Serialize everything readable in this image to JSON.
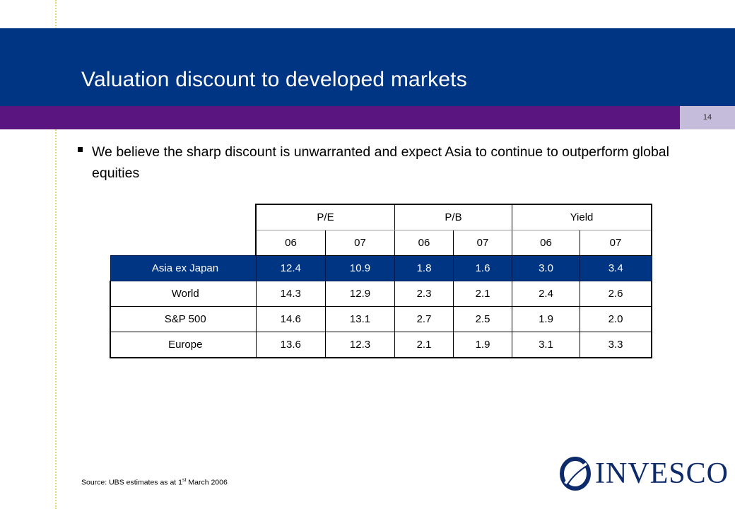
{
  "title": "Valuation discount to developed markets",
  "page_number": "14",
  "bullet": "We believe the sharp discount is unwarranted and expect Asia to continue to outperform global equities",
  "table": {
    "groups": [
      "P/E",
      "P/B",
      "Yield"
    ],
    "years": [
      "06",
      "07",
      "06",
      "07",
      "06",
      "07"
    ],
    "rows": [
      {
        "label": "Asia ex Japan",
        "values": [
          "12.4",
          "10.9",
          "1.8",
          "1.6",
          "3.0",
          "3.4"
        ]
      },
      {
        "label": "World",
        "values": [
          "14.3",
          "12.9",
          "2.3",
          "2.1",
          "2.4",
          "2.6"
        ]
      },
      {
        "label": "S&P 500",
        "values": [
          "14.6",
          "13.1",
          "2.7",
          "2.5",
          "1.9",
          "2.0"
        ]
      },
      {
        "label": "Europe",
        "values": [
          "13.6",
          "12.3",
          "2.1",
          "1.9",
          "3.1",
          "3.3"
        ]
      }
    ]
  },
  "source": {
    "prefix": "Source: UBS estimates as at 1",
    "sup": "st",
    "suffix": " March 2006"
  },
  "logo": {
    "text": "INVESCO",
    "icon": "invesco-swirl-icon"
  },
  "colors": {
    "title_bar": "#003583",
    "band": "#5a1580",
    "highlight_row": "#003583"
  }
}
